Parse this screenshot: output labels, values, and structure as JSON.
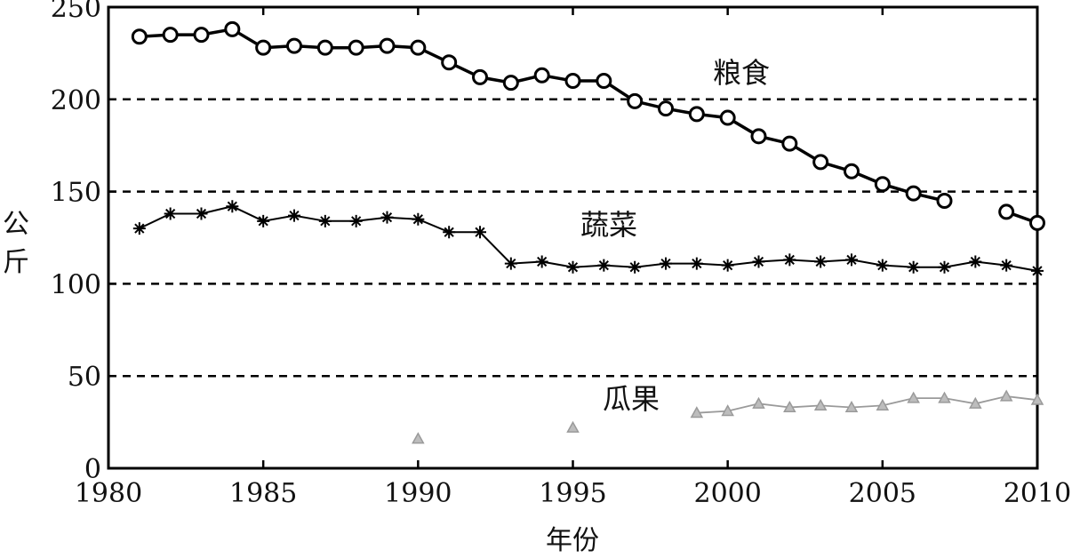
{
  "chart_data": {
    "type": "line",
    "title": "",
    "xlabel": "年份",
    "ylabel": "公斤",
    "xlim": [
      1980,
      2010
    ],
    "ylim": [
      0,
      250
    ],
    "x_ticks": [
      "1980",
      "1985",
      "1990",
      "1995",
      "2000",
      "2005",
      "2010"
    ],
    "y_ticks": [
      "0",
      "50",
      "100",
      "150",
      "200",
      "250"
    ],
    "y_ticks_values": [
      0,
      50,
      100,
      150,
      200,
      250
    ],
    "gridlines_y": [
      50,
      100,
      150,
      200
    ],
    "grid": "horizontal-dashed",
    "legend": "none",
    "series": [
      {
        "name": "粮食",
        "marker": "circle",
        "color": "#000000",
        "points": [
          [
            1981,
            234
          ],
          [
            1982,
            235
          ],
          [
            1983,
            235
          ],
          [
            1984,
            238
          ],
          [
            1985,
            228
          ],
          [
            1986,
            229
          ],
          [
            1987,
            228
          ],
          [
            1988,
            228
          ],
          [
            1989,
            229
          ],
          [
            1990,
            228
          ],
          [
            1991,
            220
          ],
          [
            1992,
            212
          ],
          [
            1993,
            209
          ],
          [
            1994,
            213
          ],
          [
            1995,
            210
          ],
          [
            1996,
            210
          ],
          [
            1997,
            199
          ],
          [
            1998,
            195
          ],
          [
            1999,
            192
          ],
          [
            2000,
            190
          ],
          [
            2001,
            180
          ],
          [
            2002,
            176
          ],
          [
            2003,
            166
          ],
          [
            2004,
            161
          ],
          [
            2005,
            154
          ],
          [
            2006,
            149
          ],
          [
            2007,
            145
          ],
          [
            null,
            null
          ],
          [
            2009,
            139
          ],
          [
            2010,
            133
          ]
        ]
      },
      {
        "name": "蔬菜",
        "marker": "asterisk",
        "color": "#000000",
        "points": [
          [
            1981,
            130
          ],
          [
            1982,
            138
          ],
          [
            1983,
            138
          ],
          [
            1984,
            142
          ],
          [
            1985,
            134
          ],
          [
            1986,
            137
          ],
          [
            1987,
            134
          ],
          [
            1988,
            134
          ],
          [
            1989,
            136
          ],
          [
            1990,
            135
          ],
          [
            1991,
            128
          ],
          [
            1992,
            128
          ],
          [
            1993,
            111
          ],
          [
            1994,
            112
          ],
          [
            1995,
            109
          ],
          [
            1996,
            110
          ],
          [
            1997,
            109
          ],
          [
            1998,
            111
          ],
          [
            1999,
            111
          ],
          [
            2000,
            110
          ],
          [
            2001,
            112
          ],
          [
            2002,
            113
          ],
          [
            2003,
            112
          ],
          [
            2004,
            113
          ],
          [
            2005,
            110
          ],
          [
            2006,
            109
          ],
          [
            2007,
            109
          ],
          [
            2008,
            112
          ],
          [
            2009,
            110
          ],
          [
            2010,
            107
          ]
        ]
      },
      {
        "name": "瓜果",
        "marker": "triangle",
        "color": "#9a9a9a",
        "points": [
          [
            1990,
            16
          ],
          [
            null,
            null
          ],
          [
            1995,
            22
          ],
          [
            null,
            null
          ],
          [
            1999,
            30
          ],
          [
            2000,
            31
          ],
          [
            2001,
            35
          ],
          [
            2002,
            33
          ],
          [
            2003,
            34
          ],
          [
            2004,
            33
          ],
          [
            2005,
            34
          ],
          [
            2006,
            38
          ],
          [
            2007,
            38
          ],
          [
            2008,
            35
          ],
          [
            2009,
            39
          ],
          [
            2010,
            37
          ]
        ]
      }
    ]
  }
}
